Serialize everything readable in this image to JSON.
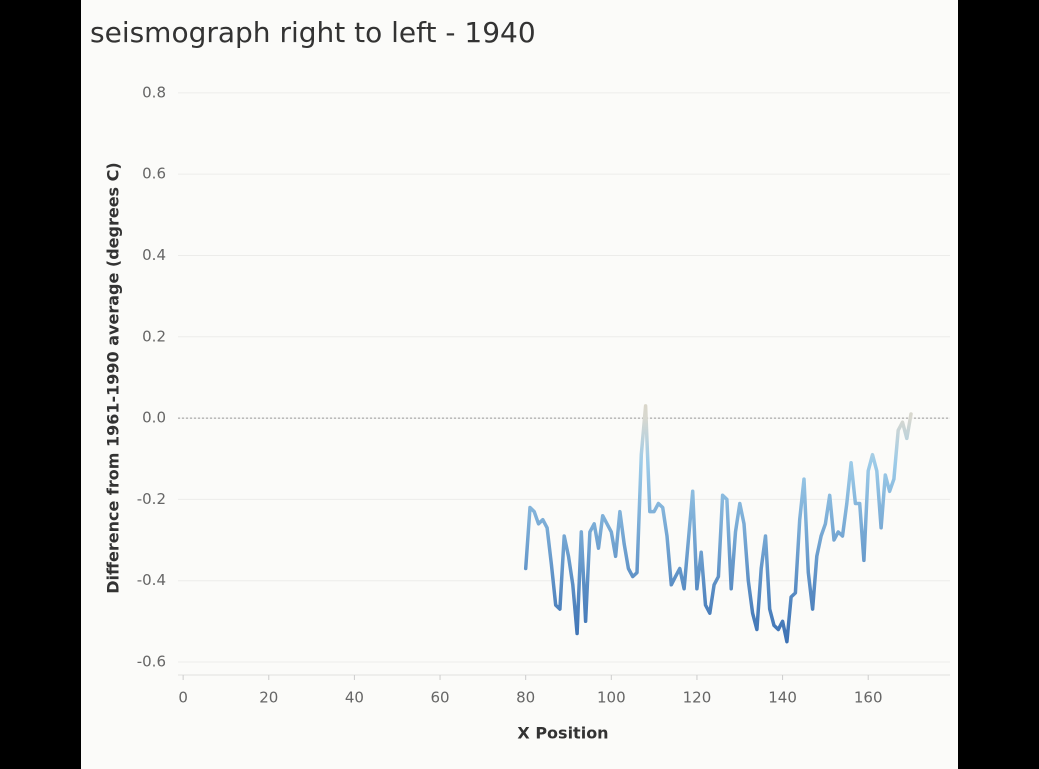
{
  "chart_data": {
    "type": "line",
    "title": "seismograph right to left - 1940",
    "x_label": "X Position",
    "y_label": "Difference from 1961-1990 average (degrees C)",
    "x": [
      80,
      81,
      82,
      83,
      84,
      85,
      86,
      87,
      88,
      89,
      90,
      91,
      92,
      93,
      94,
      95,
      96,
      97,
      98,
      99,
      100,
      101,
      102,
      103,
      104,
      105,
      106,
      107,
      108,
      109,
      110,
      111,
      112,
      113,
      114,
      115,
      116,
      117,
      118,
      119,
      120,
      121,
      122,
      123,
      124,
      125,
      126,
      127,
      128,
      129,
      130,
      131,
      132,
      133,
      134,
      135,
      136,
      137,
      138,
      139,
      140,
      141,
      142,
      143,
      144,
      145,
      146,
      147,
      148,
      149,
      150,
      151,
      152,
      153,
      154,
      155,
      156,
      157,
      158,
      159,
      160,
      161,
      162,
      163,
      164,
      165,
      166,
      167,
      168,
      169,
      170
    ],
    "series": [
      {
        "values": [
          -0.37,
          -0.22,
          -0.23,
          -0.26,
          -0.25,
          -0.27,
          -0.36,
          -0.46,
          -0.47,
          -0.29,
          -0.34,
          -0.41,
          -0.53,
          -0.28,
          -0.5,
          -0.28,
          -0.26,
          -0.32,
          -0.24,
          -0.26,
          -0.28,
          -0.34,
          -0.23,
          -0.31,
          -0.37,
          -0.39,
          -0.38,
          -0.09,
          0.03,
          -0.23,
          -0.23,
          -0.21,
          -0.22,
          -0.29,
          -0.41,
          -0.39,
          -0.37,
          -0.42,
          -0.3,
          -0.18,
          -0.42,
          -0.33,
          -0.46,
          -0.48,
          -0.41,
          -0.39,
          -0.19,
          -0.2,
          -0.42,
          -0.28,
          -0.21,
          -0.26,
          -0.4,
          -0.48,
          -0.52,
          -0.37,
          -0.29,
          -0.47,
          -0.51,
          -0.52,
          -0.5,
          -0.55,
          -0.44,
          -0.43,
          -0.25,
          -0.15,
          -0.38,
          -0.47,
          -0.34,
          -0.29,
          -0.26,
          -0.19,
          -0.3,
          -0.28,
          -0.29,
          -0.21,
          -0.11,
          -0.21,
          -0.21,
          -0.35,
          -0.13,
          -0.09,
          -0.13,
          -0.27,
          -0.14,
          -0.18,
          -0.15,
          -0.03,
          -0.01,
          -0.05,
          0.01
        ]
      }
    ],
    "color_scale": {
      "low": "#3d72b4",
      "mid_low": "#9ccbe8",
      "mid": "#d8d8d0",
      "high": "#e8b865"
    },
    "xlim": [
      -1.2,
      179.1
    ],
    "xticks": [
      0,
      20,
      40,
      60,
      80,
      100,
      120,
      140,
      160
    ],
    "ylim": [
      -0.632,
      0.844
    ],
    "yticks": [
      0.8,
      0.6,
      0.4,
      0.2,
      {
        "value": 0,
        "label": "0.0"
      },
      -0.2,
      -0.4,
      -0.6
    ],
    "grid": true
  }
}
